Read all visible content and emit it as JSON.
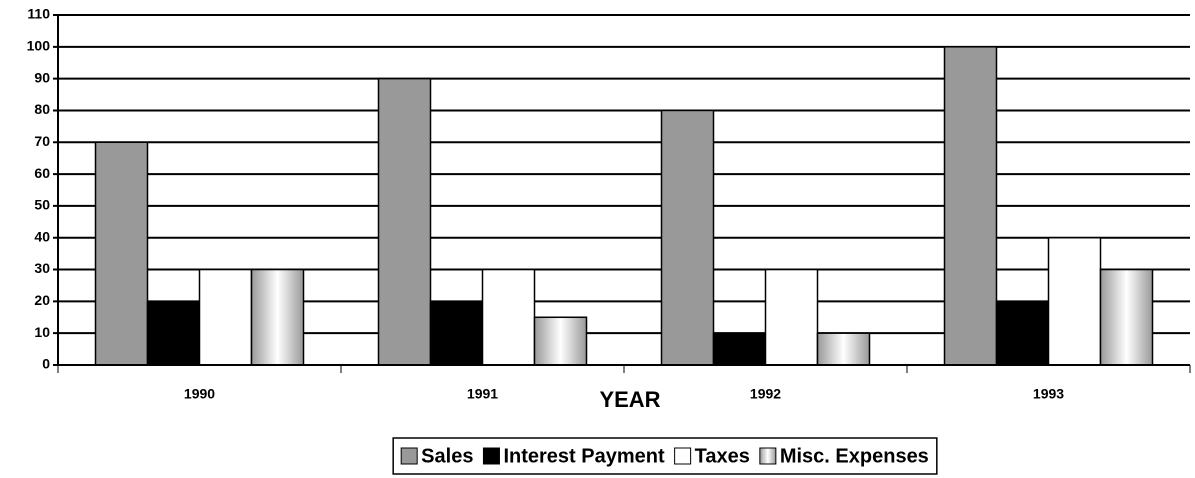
{
  "chart_data": {
    "type": "bar",
    "categories": [
      "1990",
      "1991",
      "1992",
      "1993"
    ],
    "x_label": "YEAR",
    "series": [
      {
        "name": "Sales",
        "color": "#999999",
        "values": [
          70,
          90,
          80,
          100
        ]
      },
      {
        "name": "Interest Payment",
        "color": "#000000",
        "values": [
          20,
          20,
          10,
          20
        ]
      },
      {
        "name": "Taxes",
        "color": "#ffffff",
        "values": [
          30,
          30,
          30,
          40
        ]
      },
      {
        "name": "Misc. Expenses",
        "color": "#999999",
        "gradient": true,
        "values": [
          30,
          15,
          10,
          30
        ]
      }
    ],
    "ylim": [
      0,
      110
    ],
    "yticks": [
      0,
      10,
      20,
      30,
      40,
      50,
      60,
      70,
      80,
      90,
      100,
      110
    ],
    "grid": true,
    "legend": "bottom"
  }
}
